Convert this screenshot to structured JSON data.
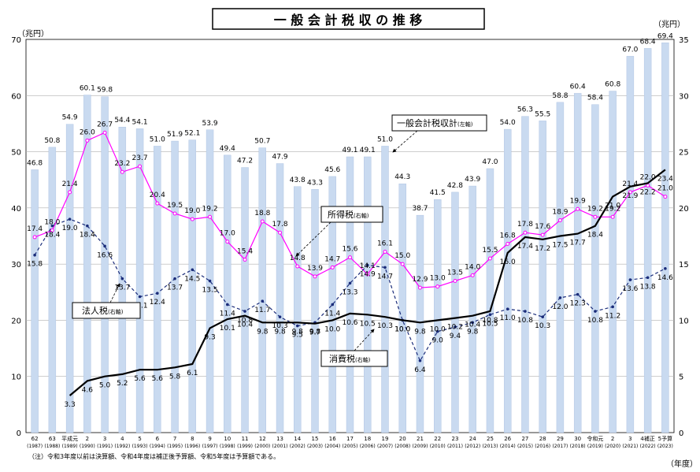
{
  "chart_data": {
    "type": "bar",
    "title": "一 般 会 計 税 収 の 推 移",
    "ylabel_left": "（兆円）",
    "ylabel_right": "（兆円）",
    "xlabel": "（年度）",
    "ylim_left": [
      0,
      70
    ],
    "ylim_right": [
      0,
      35
    ],
    "yticks_left": [
      "0",
      "10",
      "20",
      "30",
      "40",
      "50",
      "60",
      "70"
    ],
    "yticks_right": [
      "0",
      "5",
      "10",
      "15",
      "20",
      "25",
      "30",
      "35"
    ],
    "note": "（注）令和3年度以前は決算額、令和4年度は補正後予算額、令和5年度は予算額である。",
    "categories": [
      "62",
      "63",
      "平成元",
      "2",
      "3",
      "4",
      "5",
      "6",
      "7",
      "8",
      "9",
      "10",
      "11",
      "12",
      "13",
      "14",
      "15",
      "16",
      "17",
      "18",
      "19",
      "20",
      "21",
      "22",
      "23",
      "24",
      "25",
      "26",
      "27",
      "28",
      "29",
      "30",
      "令和元",
      "2",
      "3",
      "4補正",
      "5予算"
    ],
    "categories_year": [
      "(1987)",
      "(1988)",
      "(1989)",
      "(1990)",
      "(1991)",
      "(1992)",
      "(1993)",
      "(1994)",
      "(1995)",
      "(1996)",
      "(1997)",
      "(1998)",
      "(1999)",
      "(2000)",
      "(2001)",
      "(2002)",
      "(2003)",
      "(2004)",
      "(2005)",
      "(2006)",
      "(2007)",
      "(2008)",
      "(2009)",
      "(2010)",
      "(2011)",
      "(2012)",
      "(2013)",
      "(2014)",
      "(2015)",
      "(2016)",
      "(2017)",
      "(2018)",
      "(2019)",
      "(2020)",
      "(2021)",
      "(2022)",
      "(2023)"
    ],
    "series": [
      {
        "name": "一般会計税収計（左軸）",
        "axis": "left",
        "type": "bar",
        "color": "#c9daf0",
        "values": [
          46.8,
          50.8,
          54.9,
          60.1,
          59.8,
          54.4,
          54.1,
          51.0,
          51.9,
          52.1,
          53.9,
          49.4,
          47.2,
          50.7,
          47.9,
          43.8,
          43.3,
          45.6,
          49.1,
          49.1,
          51.0,
          44.3,
          38.7,
          41.5,
          42.8,
          43.9,
          47.0,
          54.0,
          56.3,
          55.5,
          58.8,
          60.4,
          58.4,
          60.8,
          67.0,
          68.4,
          69.4
        ]
      },
      {
        "name": "所得税（右軸）",
        "axis": "right",
        "type": "line",
        "color": "#ff00ff",
        "values": [
          17.4,
          18.0,
          21.4,
          26.0,
          26.7,
          23.2,
          23.7,
          20.4,
          19.5,
          19.0,
          19.2,
          17.0,
          15.4,
          18.8,
          17.8,
          14.8,
          13.9,
          14.7,
          15.6,
          14.1,
          16.1,
          15.0,
          12.9,
          13.0,
          13.5,
          14.0,
          15.5,
          16.8,
          17.8,
          17.6,
          18.9,
          19.9,
          19.2,
          19.2,
          21.4,
          22.0,
          21.0
        ]
      },
      {
        "name": "法人税（右軸）",
        "axis": "right",
        "type": "line",
        "dashed": true,
        "color": "#1a2c7a",
        "values": [
          15.8,
          18.4,
          19.0,
          18.4,
          16.6,
          13.7,
          12.1,
          12.4,
          13.7,
          14.5,
          13.5,
          11.4,
          10.8,
          11.7,
          10.3,
          9.5,
          9.8,
          11.4,
          13.3,
          14.9,
          14.7,
          10.0,
          6.4,
          9.0,
          9.4,
          9.8,
          10.5,
          11.0,
          10.8,
          10.3,
          12.0,
          12.3,
          10.8,
          11.2,
          13.6,
          13.8,
          14.6
        ]
      },
      {
        "name": "消費税（右軸）",
        "axis": "right",
        "type": "line",
        "color": "#000000",
        "values": [
          null,
          null,
          3.3,
          4.6,
          5.0,
          5.2,
          5.6,
          5.6,
          5.8,
          6.1,
          9.3,
          10.1,
          10.4,
          9.8,
          9.8,
          9.8,
          9.7,
          10.0,
          10.6,
          10.5,
          10.3,
          10.0,
          9.8,
          10.0,
          10.2,
          10.4,
          10.8,
          16.0,
          17.4,
          17.2,
          17.5,
          17.7,
          18.4,
          21.0,
          21.9,
          22.2,
          23.4
        ]
      }
    ],
    "legend": {
      "total": "一般会計税収計",
      "total_axis": "(左軸)",
      "income": "所得税",
      "income_axis": "(右軸)",
      "corporate": "法人税",
      "corporate_axis": "(右軸)",
      "consumption": "消費税",
      "consumption_axis": "(右軸)"
    }
  }
}
